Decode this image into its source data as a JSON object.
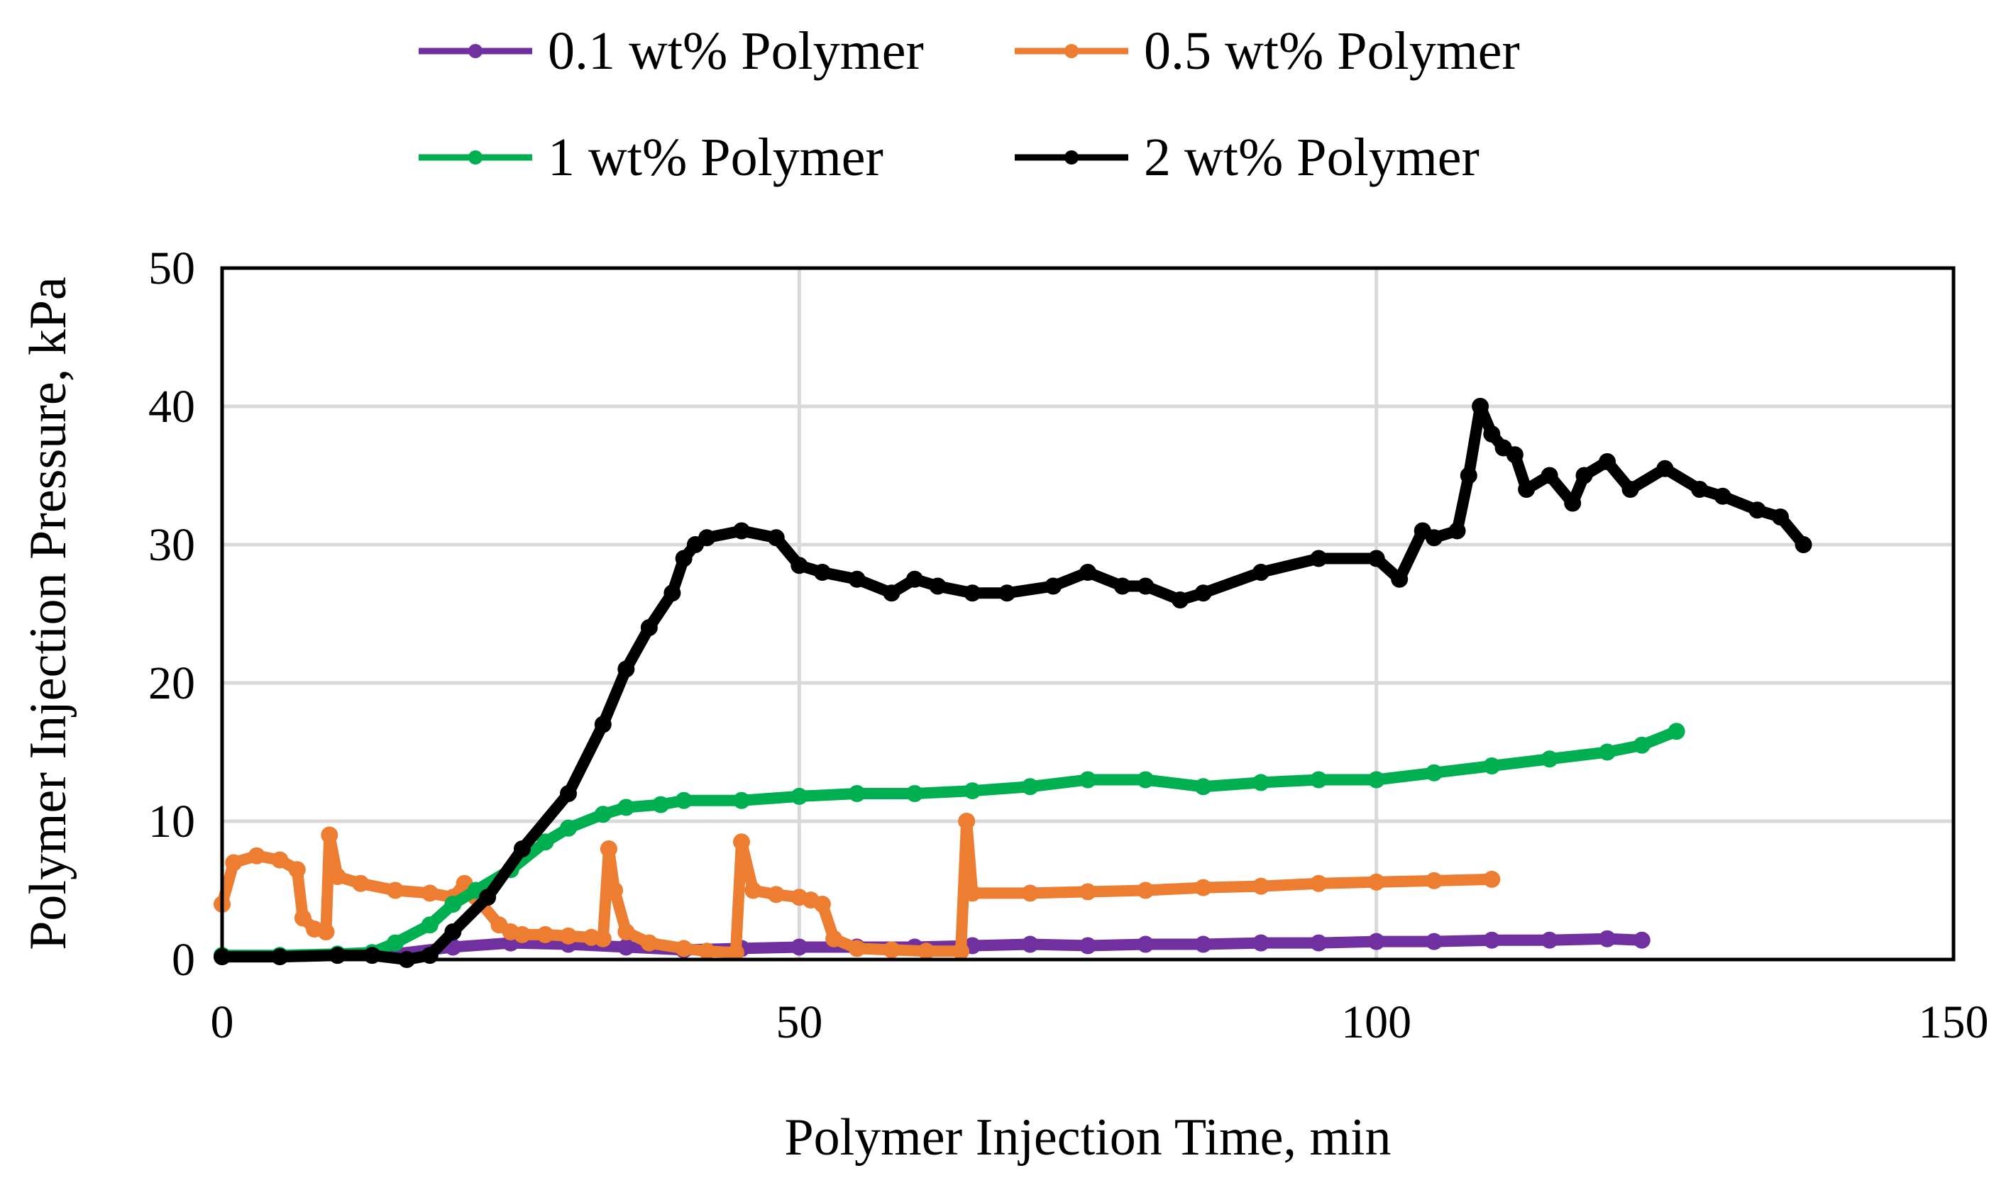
{
  "chart_data": {
    "type": "scatter",
    "xlabel": "Polymer Injection Time, min",
    "ylabel": "Polymer Injection Pressure, kPa",
    "xlim": [
      0,
      150
    ],
    "ylim": [
      0,
      50
    ],
    "xticks": [
      "0",
      "50",
      "100",
      "150"
    ],
    "yticks": [
      "0",
      "10",
      "20",
      "30",
      "40",
      "50"
    ],
    "grid": true,
    "legend_position": "top",
    "series": [
      {
        "name": "0.1 wt% Polymer",
        "color": "#7030a0",
        "x": [
          0,
          5,
          10,
          15,
          20,
          25,
          30,
          35,
          40,
          45,
          50,
          55,
          60,
          65,
          70,
          75,
          80,
          85,
          90,
          95,
          100,
          105,
          110,
          115,
          120,
          123
        ],
        "y": [
          0.2,
          0.2,
          0.3,
          0.4,
          0.9,
          1.2,
          1.1,
          0.9,
          0.7,
          0.8,
          0.9,
          0.9,
          0.9,
          1.0,
          1.1,
          1.0,
          1.1,
          1.1,
          1.2,
          1.2,
          1.3,
          1.3,
          1.4,
          1.4,
          1.5,
          1.4
        ]
      },
      {
        "name": "0.5 wt% Polymer",
        "color": "#ed7d31",
        "x": [
          0,
          1,
          3,
          5,
          6.5,
          7,
          8,
          9,
          9.3,
          10,
          12,
          15,
          18,
          20,
          21,
          22,
          24,
          25,
          26,
          28,
          30,
          32,
          33,
          33.5,
          34,
          35,
          37,
          40,
          42,
          44.5,
          45,
          46,
          48,
          50,
          51,
          52,
          53,
          55,
          58,
          61,
          64,
          64.5,
          65,
          70,
          75,
          80,
          85,
          90,
          95,
          100,
          105,
          110
        ],
        "y": [
          4.0,
          7.0,
          7.5,
          7.2,
          6.5,
          3.0,
          2.2,
          2.0,
          9.0,
          6.0,
          5.5,
          5.0,
          4.8,
          4.5,
          5.5,
          4.5,
          2.5,
          2.0,
          1.8,
          1.8,
          1.7,
          1.6,
          1.5,
          8.0,
          5.0,
          2.0,
          1.2,
          0.8,
          0.6,
          0.5,
          8.5,
          5.0,
          4.7,
          4.5,
          4.3,
          4.0,
          1.5,
          0.8,
          0.7,
          0.6,
          0.6,
          10.0,
          4.8,
          4.8,
          4.9,
          5.0,
          5.2,
          5.3,
          5.5,
          5.6,
          5.7,
          5.8
        ]
      },
      {
        "name": "1 wt% Polymer",
        "color": "#00b050",
        "x": [
          0,
          5,
          10,
          13,
          15,
          18,
          20,
          22,
          25,
          28,
          30,
          33,
          35,
          38,
          40,
          45,
          50,
          55,
          60,
          65,
          70,
          75,
          80,
          85,
          90,
          95,
          100,
          105,
          110,
          115,
          120,
          123,
          126
        ],
        "y": [
          0.3,
          0.3,
          0.4,
          0.5,
          1.2,
          2.5,
          4.0,
          5.0,
          6.5,
          8.5,
          9.5,
          10.5,
          11.0,
          11.2,
          11.5,
          11.5,
          11.8,
          12.0,
          12.0,
          12.2,
          12.5,
          13.0,
          13.0,
          12.5,
          12.8,
          13.0,
          13.0,
          13.5,
          14.0,
          14.5,
          15.0,
          15.5,
          16.5
        ]
      },
      {
        "name": "2 wt% Polymer",
        "color": "#000000",
        "x": [
          0,
          5,
          10,
          13,
          16,
          18,
          20,
          23,
          26,
          30,
          33,
          35,
          37,
          39,
          40,
          41,
          42,
          45,
          48,
          50,
          52,
          55,
          58,
          60,
          62,
          65,
          68,
          72,
          75,
          78,
          80,
          83,
          85,
          90,
          95,
          100,
          102,
          104,
          105,
          107,
          108,
          109,
          110,
          111,
          112,
          113,
          115,
          117,
          118,
          120,
          122,
          125,
          128,
          130,
          133,
          135,
          137
        ],
        "y": [
          0.2,
          0.2,
          0.3,
          0.3,
          0.0,
          0.3,
          2.0,
          4.5,
          8.0,
          12.0,
          17.0,
          21.0,
          24.0,
          26.5,
          29.0,
          30.0,
          30.5,
          31.0,
          30.5,
          28.5,
          28.0,
          27.5,
          26.5,
          27.5,
          27.0,
          26.5,
          26.5,
          27.0,
          28.0,
          27.0,
          27.0,
          26.0,
          26.5,
          28.0,
          29.0,
          29.0,
          27.5,
          31.0,
          30.5,
          31.0,
          35.0,
          40.0,
          38.0,
          37.0,
          36.5,
          34.0,
          35.0,
          33.0,
          35.0,
          36.0,
          34.0,
          35.5,
          34.0,
          33.5,
          32.5,
          32.0,
          30.0
        ]
      }
    ]
  }
}
